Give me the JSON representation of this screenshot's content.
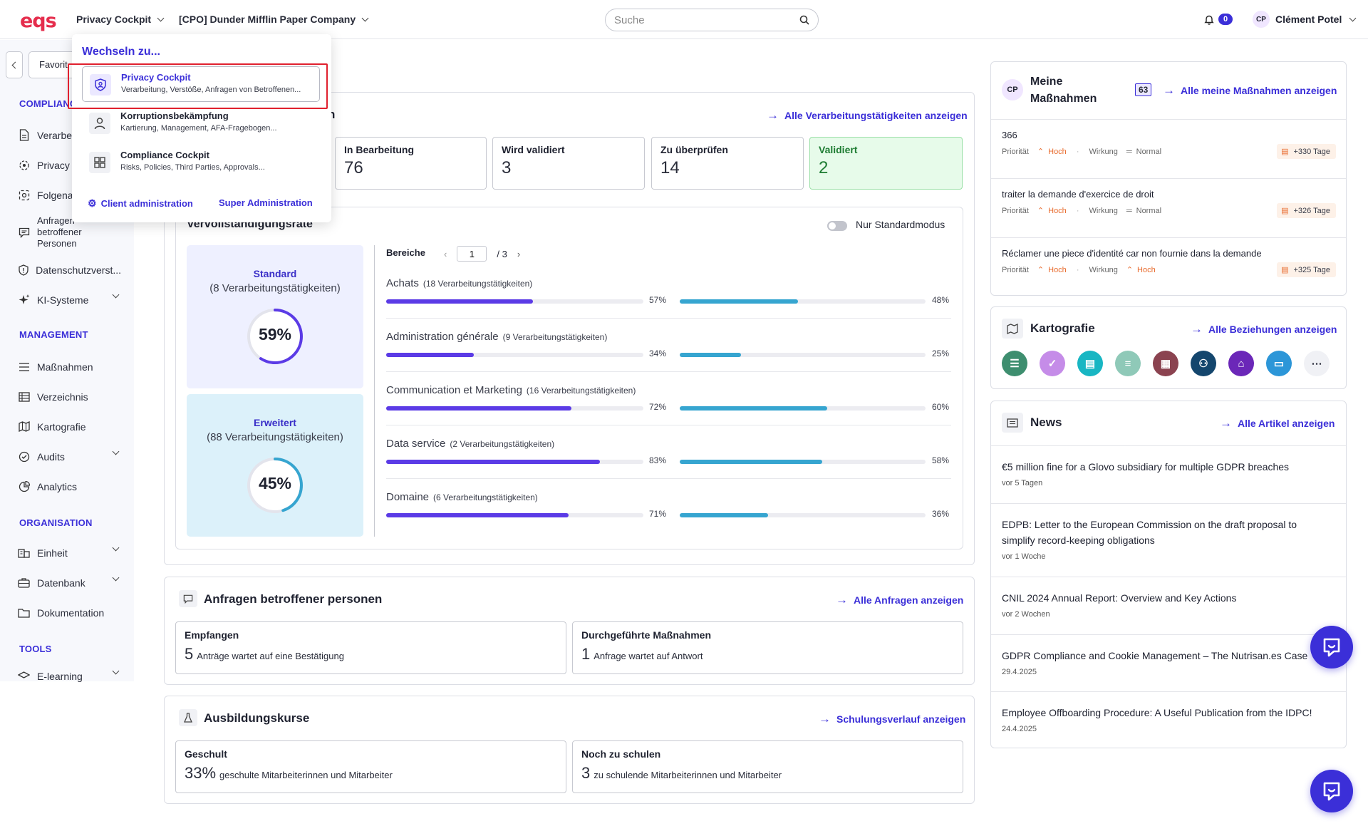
{
  "header": {
    "logo": "eqs",
    "app_switcher": "Privacy Cockpit",
    "company_switcher": "[CPO] Dunder Mifflin Paper Company",
    "search_placeholder": "Suche",
    "notification_count": "0",
    "user_initials": "CP",
    "user_name": "Clément Potel"
  },
  "sidebar": {
    "favorites": "Favorit",
    "section_compliance": "COMPLIANC",
    "items_compliance": [
      "Verarbe",
      "Privacy",
      "Folgena",
      "Anfragen betroffener Personen",
      "Datenschutzverst...",
      "KI-Systeme"
    ],
    "section_management": "MANAGEMENT",
    "items_management": [
      "Maßnahmen",
      "Verzeichnis",
      "Kartografie",
      "Audits",
      "Analytics"
    ],
    "section_organisation": "ORGANISATION",
    "items_organisation": [
      "Einheit",
      "Datenbank",
      "Dokumentation"
    ],
    "section_tools": "TOOLS",
    "items_tools": [
      "E-learning"
    ]
  },
  "processing": {
    "title_suffix": "n",
    "link": "Alle Verarbeitungstätigkeiten anzeigen",
    "statuses": [
      {
        "label": "In Bearbeitung",
        "value": "76"
      },
      {
        "label": "Wird validiert",
        "value": "3"
      },
      {
        "label": "Zu überprüfen",
        "value": "14"
      },
      {
        "label": "Validiert",
        "value": "2"
      }
    ]
  },
  "completeness": {
    "title": "Vervollständigungsrate",
    "toggle_label": "Nur Standardmodus",
    "standard": {
      "title": "Standard",
      "subtitle": "(8 Verarbeitungstätigkeiten)",
      "value": "59%",
      "fraction": 0.59
    },
    "extended": {
      "title": "Erweitert",
      "subtitle": "(88 Verarbeitungstätigkeiten)",
      "value": "45%",
      "fraction": 0.45
    },
    "areas_label": "Bereiche",
    "page_current": "1",
    "page_total": "/ 3",
    "areas": [
      {
        "name": "Achats",
        "count": "(18 Verarbeitungstätigkeiten)",
        "p1": 57,
        "p1_label": "57%",
        "p2": 48,
        "p2_label": "48%"
      },
      {
        "name": "Administration générale",
        "count": "(9 Verarbeitungstätigkeiten)",
        "p1": 34,
        "p1_label": "34%",
        "p2": 25,
        "p2_label": "25%"
      },
      {
        "name": "Communication et Marketing",
        "count": "(16 Verarbeitungstätigkeiten)",
        "p1": 72,
        "p1_label": "72%",
        "p2": 60,
        "p2_label": "60%"
      },
      {
        "name": "Data service",
        "count": "(2 Verarbeitungstätigkeiten)",
        "p1": 83,
        "p1_label": "83%",
        "p2": 58,
        "p2_label": "58%"
      },
      {
        "name": "Domaine",
        "count": "(6 Verarbeitungstätigkeiten)",
        "p1": 71,
        "p1_label": "71%",
        "p2": 36,
        "p2_label": "36%"
      }
    ]
  },
  "requests": {
    "title": "Anfragen betroffener personen",
    "link": "Alle Anfragen anzeigen",
    "received_label": "Empfangen",
    "received_num": "5",
    "received_text": "Anträge wartet auf eine Bestätigung",
    "actions_label": "Durchgeführte Maßnahmen",
    "actions_num": "1",
    "actions_text": "Anfrage wartet auf Antwort"
  },
  "training": {
    "title": "Ausbildungskurse",
    "link": "Schulungsverlauf anzeigen",
    "trained_label": "Geschult",
    "trained_num": "33%",
    "trained_text": "geschulte Mitarbeiterinnen und Mitarbeiter",
    "pending_label": "Noch zu schulen",
    "pending_num": "3",
    "pending_text": "zu schulende Mitarbeiterinnen und Mitarbeiter"
  },
  "my_actions": {
    "initials": "CP",
    "title_line1": "Meine",
    "title_line2": "Maßnahmen",
    "count": "63",
    "link": "Alle meine Maßnahmen anzeigen",
    "priority_label": "Priorität",
    "impact_label": "Wirkung",
    "tasks": [
      {
        "title": "366",
        "priority": "Hoch",
        "impact": "Normal",
        "days": "+330 Tage"
      },
      {
        "title": "traiter la demande d'exercice de droit",
        "priority": "Hoch",
        "impact": "Normal",
        "days": "+326 Tage"
      },
      {
        "title": "Réclamer une piece d'identité car non fournie dans la demande",
        "priority": "Hoch",
        "impact": "Hoch",
        "days": "+325 Tage"
      }
    ]
  },
  "cartography": {
    "title": "Kartografie",
    "link": "Alle Beziehungen anzeigen",
    "icons": [
      "list-icon",
      "shield-check-icon",
      "document-icon",
      "database-icon",
      "report-icon",
      "group-icon",
      "institution-icon",
      "window-icon",
      "more-icon"
    ],
    "icon_colors": [
      "#3e8e6f",
      "#c58ce8",
      "#18b6c3",
      "#8fc9b8",
      "#8b4350",
      "#14466d",
      "#6b27b8",
      "#2c96d8",
      "#f0f1f5"
    ]
  },
  "news": {
    "title": "News",
    "link": "Alle Artikel anzeigen",
    "items": [
      {
        "title": "€5 million fine for a Glovo subsidiary for multiple GDPR breaches",
        "date": "vor 5 Tagen"
      },
      {
        "title": "EDPB: Letter to the European Commission on the draft proposal to simplify record-keeping obligations",
        "date": "vor 1 Woche"
      },
      {
        "title": "CNIL 2024 Annual Report: Overview and Key Actions",
        "date": "vor 2 Wochen"
      },
      {
        "title": "GDPR Compliance and Cookie Management – The Nutrisan.es Case",
        "date": "29.4.2025"
      },
      {
        "title": "Employee Offboarding Procedure: A Useful Publication from the IDPC!",
        "date": "24.4.2025"
      }
    ]
  },
  "switcher": {
    "heading": "Wechseln zu...",
    "items": [
      {
        "title": "Privacy Cockpit",
        "subtitle": "Verarbeitung, Verstöße, Anfragen von Betroffenen..."
      },
      {
        "title": "Korruptionsbekämpfung",
        "subtitle": "Kartierung, Management, AFA-Fragebogen..."
      },
      {
        "title": "Compliance Cockpit",
        "subtitle": "Risks, Policies, Third Parties, Approvals..."
      }
    ],
    "client_admin": "Client administration",
    "super_admin": "Super Administration"
  },
  "colors": {
    "accent": "#3b2fd8",
    "bar_primary": "#5b3be6",
    "bar_secondary": "#36a5d0",
    "validated": "#1e7c32",
    "priority_high": "#e86a2c",
    "highlight_border": "#e0202e"
  }
}
